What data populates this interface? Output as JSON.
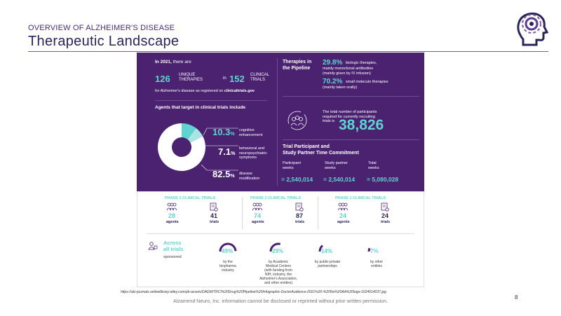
{
  "slide": {
    "kicker": "OVERVIEW OF ALZHEIMER'S DISEASE",
    "title": "Therapeutic Landscape",
    "page_number": "8",
    "source": "https://alz-journals.onlinelibrary.wiley.com/pb-assets/DADM/TRCI%20Drug%20Pipeline%20Infographic-DoctorAudience-2021%20-%20No%20AA%20logo-1624914037.jpg",
    "disclaimer": "Alzamend Neuro, Inc. information cannot be disclosed or reprinted without prior written permission."
  },
  "infographic": {
    "intro_year": "In 2021,",
    "intro_rest": "there are",
    "unique_num": "126",
    "unique_label1": "UNIQUE",
    "unique_label2": "THERAPIES",
    "in": "in",
    "trials_num": "152",
    "trials_label1": "CLINICAL",
    "trials_label2": "TRIALS",
    "registered_prefix": "for Alzheimer's disease as registered on",
    "registered_site": "clinicaltrials.gov",
    "agents_heading": "Agents that target in clinical trials include",
    "donut": [
      {
        "pct": "10.3",
        "unit": "%",
        "l1": "cognitive",
        "l2": "enhancement",
        "l3": "",
        "value": 10.3,
        "color": "#5fd3cf"
      },
      {
        "pct": "7.1",
        "unit": "%",
        "l1": "behavioral and",
        "l2": "neuropsychiatric",
        "l3": "symptoms",
        "value": 7.1,
        "color": "#a8e6e3"
      },
      {
        "pct": "82.5",
        "unit": "%",
        "l1": "disease",
        "l2": "modification",
        "l3": "",
        "value": 82.5,
        "color": "#ffffff"
      }
    ],
    "pipeline_heading1": "Therapies in",
    "pipeline_heading2": "the Pipeline",
    "bio_pct": "29.8%",
    "bio_l1": "biologic therapies,",
    "bio_l2": "mainly monoclonal antibodies",
    "bio_l3": "(mainly given by IV infusion)",
    "small_pct": "70.2%",
    "small_l1": "small molecule therapies",
    "small_l2": "(mainly taken orally)",
    "participants_l1": "The total number of participants",
    "participants_l2": "required for currently recruiting",
    "participants_l3": "trials is",
    "participants_num": "38,826",
    "commit_heading1": "Trial Participant and",
    "commit_heading2": "Study Partner Time Commitment",
    "commit_cols": [
      {
        "l1": "Participant",
        "l2": "weeks",
        "value": "= 2,540,014"
      },
      {
        "l1": "Study partner",
        "l2": "weeks",
        "value": "= 2,540,014"
      },
      {
        "l1": "Total",
        "l2": "weeks",
        "value": "= 5,080,028"
      }
    ],
    "phases": [
      {
        "title": "PHASE 3 CLINICAL TRIALS",
        "agents": "28",
        "agents_label": "agents",
        "trials": "41",
        "trials_label": "trials"
      },
      {
        "title": "PHASE 2 CLINICAL TRIALS",
        "agents": "74",
        "agents_label": "agents",
        "trials": "87",
        "trials_label": "trials"
      },
      {
        "title": "PHASE 1 CLINICAL TRIALS",
        "agents": "24",
        "agents_label": "agents",
        "trials": "24",
        "trials_label": "trials"
      }
    ],
    "across1": "Across",
    "across2": "all trials",
    "sponsored": "sponsored",
    "sponsors": [
      {
        "pct": "49%",
        "value": 49,
        "lines": [
          "by the",
          "biopharma",
          "industry"
        ]
      },
      {
        "pct": "29%",
        "value": 29,
        "lines": [
          "by Academic",
          "Medical Centers",
          "(with funding from",
          "NIH, industry, the",
          "Alzheimer's Association,",
          "and other entities)"
        ]
      },
      {
        "pct": "14%",
        "value": 14,
        "lines": [
          "by public-private",
          "partnerships"
        ]
      },
      {
        "pct": "7%",
        "value": 7,
        "lines": [
          "by other",
          "entities"
        ]
      }
    ]
  },
  "colors": {
    "panel": "#4a2270",
    "teal": "#5fd3cf",
    "title": "#2a2458"
  }
}
